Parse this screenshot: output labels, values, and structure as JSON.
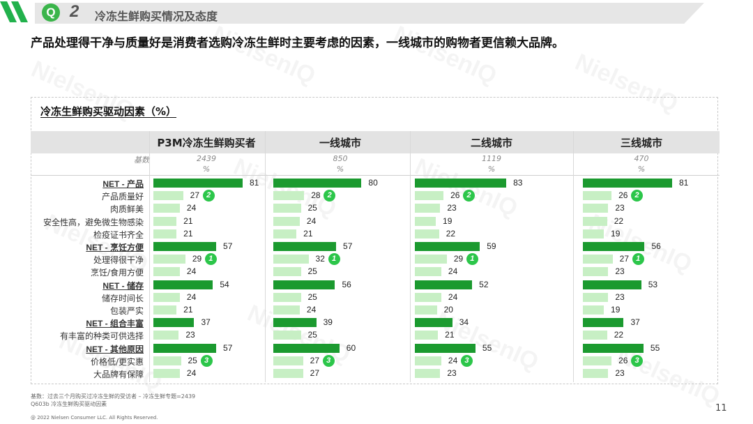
{
  "header": {
    "q_letter": "Q",
    "section_number": "2",
    "section_title": "冷冻生鲜购买情况及态度"
  },
  "headline": "产品处理得干净与质量好是消费者选购冷冻生鲜时主要考虑的因素，一线城市的购物者更信赖大品牌。",
  "watermark_text": "NielsenIQ",
  "chart_data": {
    "type": "bar",
    "title": "冷冻生鲜购买驱动因素（%）",
    "base_label": "基数",
    "unit_label": "%",
    "groups": [
      {
        "name": "P3M冷冻生鲜购买者",
        "base": "2439"
      },
      {
        "name": "一线城市",
        "base": "850"
      },
      {
        "name": "二线城市",
        "base": "1119"
      },
      {
        "name": "三线城市",
        "base": "470"
      }
    ],
    "colors": {
      "net": "#1b9a2f",
      "sub": "#c7efc4",
      "rank": "#2cc64a"
    },
    "rows": [
      {
        "label": "NET - 产品",
        "net": true,
        "values": [
          81,
          80,
          83,
          81
        ]
      },
      {
        "label": "产品质量好",
        "net": false,
        "values": [
          27,
          28,
          26,
          26
        ],
        "rank": "2"
      },
      {
        "label": "肉质鲜美",
        "net": false,
        "values": [
          24,
          25,
          23,
          23
        ]
      },
      {
        "label": "安全性高，避免微生物感染",
        "net": false,
        "values": [
          21,
          24,
          19,
          22
        ]
      },
      {
        "label": "检疫证书齐全",
        "net": false,
        "values": [
          21,
          21,
          22,
          19
        ]
      },
      {
        "label": "NET - 烹饪方便",
        "net": true,
        "values": [
          57,
          57,
          59,
          56
        ]
      },
      {
        "label": "处理得很干净",
        "net": false,
        "values": [
          29,
          32,
          29,
          27
        ],
        "rank": "1"
      },
      {
        "label": "烹饪/食用方便",
        "net": false,
        "values": [
          24,
          25,
          24,
          23
        ]
      },
      {
        "label": "NET - 储存",
        "net": true,
        "values": [
          54,
          56,
          52,
          53
        ]
      },
      {
        "label": "储存时间长",
        "net": false,
        "values": [
          24,
          25,
          24,
          23
        ]
      },
      {
        "label": "包装严实",
        "net": false,
        "values": [
          21,
          24,
          20,
          19
        ]
      },
      {
        "label": "NET - 组合丰富",
        "net": true,
        "values": [
          37,
          39,
          34,
          37
        ]
      },
      {
        "label": "有丰富的种类可供选择",
        "net": false,
        "values": [
          23,
          25,
          21,
          22
        ]
      },
      {
        "label": "NET - 其他原因",
        "net": true,
        "values": [
          57,
          60,
          55,
          55
        ]
      },
      {
        "label": "价格低/更实惠",
        "net": false,
        "values": [
          25,
          27,
          24,
          26
        ],
        "rank": "3"
      },
      {
        "label": "大品牌有保障",
        "net": false,
        "values": [
          24,
          27,
          23,
          23
        ]
      }
    ]
  },
  "footnotes": {
    "line1": "基数：过去三个月购买过冷冻生鲜的受访者 – 冷冻生鲜专题=2439",
    "line2": "Q603b 冷冻生鲜购买驱动因素"
  },
  "copyright": "@ 2022 Nielsen Consumer LLC. All Rights Reserved.",
  "page_number": "11"
}
